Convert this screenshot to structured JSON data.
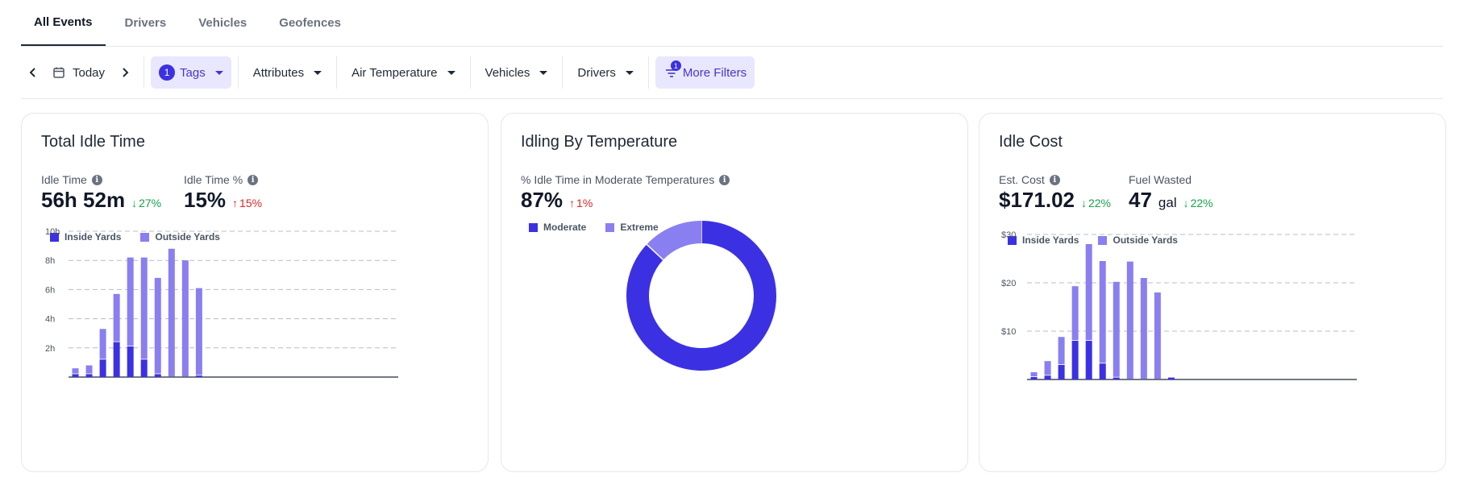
{
  "tabs": [
    "All Events",
    "Drivers",
    "Vehicles",
    "Geofences"
  ],
  "filters": {
    "date_label": "Today",
    "tags_count": "1",
    "tags_label": "Tags",
    "attributes_label": "Attributes",
    "air_temperature_label": "Air Temperature",
    "vehicles_label": "Vehicles",
    "drivers_label": "Drivers",
    "more_filters_count": "1",
    "more_filters_label": "More Filters"
  },
  "colors": {
    "inside": "#3b31e3",
    "outside": "#8a7ff0",
    "moderate": "#3b31e3",
    "extreme": "#8a7ff0",
    "down": "#16a34a",
    "up": "#dc2626"
  },
  "cards": {
    "idle_time": {
      "title": "Total Idle Time",
      "m1_label": "Idle Time",
      "m1_value": "56h 52m",
      "m1_change": "27%",
      "m2_label": "Idle Time %",
      "m2_value": "15%",
      "m2_change": "15%"
    },
    "temperature": {
      "title": "Idling By Temperature",
      "m1_label": "% Idle Time in Moderate Temperatures",
      "m1_value": "87%",
      "m1_change": "1%"
    },
    "cost": {
      "title": "Idle Cost",
      "m1_label": "Est. Cost",
      "m1_value": "$171.02",
      "m1_change": "22%",
      "m2_label": "Fuel Wasted",
      "m2_value": "47",
      "m2_unit": "gal",
      "m2_change": "22%"
    }
  },
  "chart_data": [
    {
      "type": "bar",
      "stacked": true,
      "series": [
        {
          "name": "Inside Yards",
          "values": [
            0.2,
            0.2,
            1.2,
            2.4,
            2.1,
            1.2,
            0.2,
            0,
            0,
            0.1,
            0,
            0,
            0,
            0,
            0,
            0,
            0,
            0,
            0,
            0,
            0,
            0,
            0,
            0
          ]
        },
        {
          "name": "Outside Yards",
          "values": [
            0.4,
            0.6,
            2.1,
            3.3,
            6.1,
            7.0,
            6.6,
            8.8,
            8.0,
            6.0,
            0,
            0,
            0,
            0,
            0,
            0,
            0,
            0,
            0,
            0,
            0,
            0,
            0,
            0
          ]
        }
      ],
      "y_ticks": [
        "2h",
        "4h",
        "6h",
        "8h",
        "10h"
      ],
      "ylim": [
        0,
        10
      ],
      "grid": true,
      "legend": "top-left"
    },
    {
      "type": "pie",
      "donut": true,
      "slices": [
        {
          "name": "Moderate",
          "value": 87
        },
        {
          "name": "Extreme",
          "value": 13
        }
      ],
      "legend": "top-left"
    },
    {
      "type": "bar",
      "stacked": true,
      "series": [
        {
          "name": "Inside Yards",
          "values": [
            0.5,
            0.8,
            3.0,
            8.0,
            8.0,
            3.3,
            0.4,
            0,
            0,
            0,
            0.4,
            0,
            0,
            0,
            0,
            0,
            0,
            0,
            0,
            0,
            0,
            0,
            0,
            0
          ]
        },
        {
          "name": "Outside Yards",
          "values": [
            1.0,
            3.0,
            5.8,
            11.3,
            20.0,
            21.2,
            19.8,
            24.4,
            21.0,
            18.0,
            0,
            0,
            0,
            0,
            0,
            0,
            0,
            0,
            0,
            0,
            0,
            0,
            0,
            0
          ]
        }
      ],
      "y_ticks": [
        "$10",
        "$20",
        "$30"
      ],
      "ylim": [
        0,
        30
      ],
      "grid": true,
      "legend": "top-left"
    }
  ]
}
